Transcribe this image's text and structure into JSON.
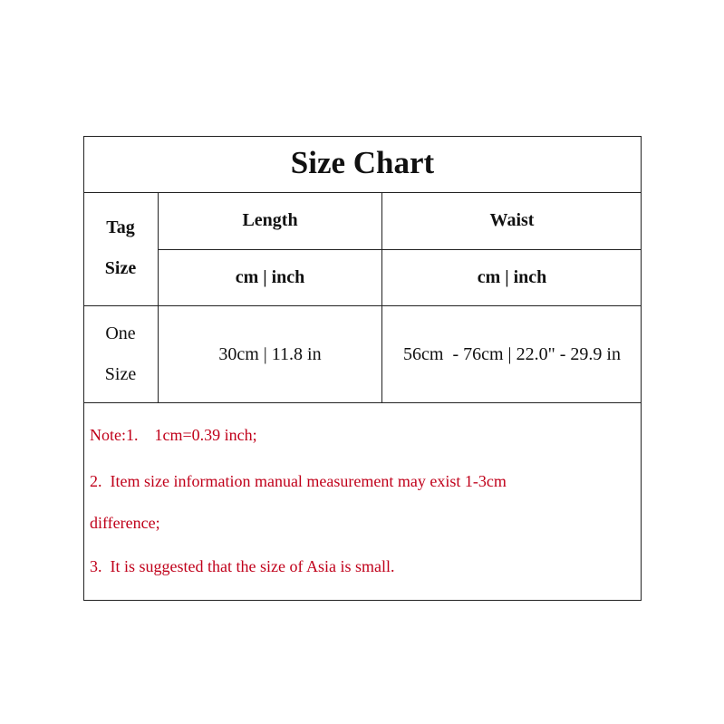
{
  "title": "Size Chart",
  "header": {
    "tag_size": [
      "Tag",
      "Size"
    ],
    "columns": [
      {
        "label": "Length",
        "unit": "cm | inch"
      },
      {
        "label": "Waist",
        "unit": "cm | inch"
      }
    ]
  },
  "rows": [
    {
      "size": [
        "One",
        "Size"
      ],
      "length": "30cm | 11.8 in",
      "waist": "56cm  - 76cm | 22.0\" - 29.9 in"
    }
  ],
  "notes": [
    "Note:1.    1cm=0.39 inch;",
    "2.  Item size information manual measurement may exist 1-3cm",
    "difference;",
    "3.  It is suggested that the size of Asia is small."
  ],
  "colors": {
    "note_text": "#c0001a",
    "border": "#222222"
  }
}
